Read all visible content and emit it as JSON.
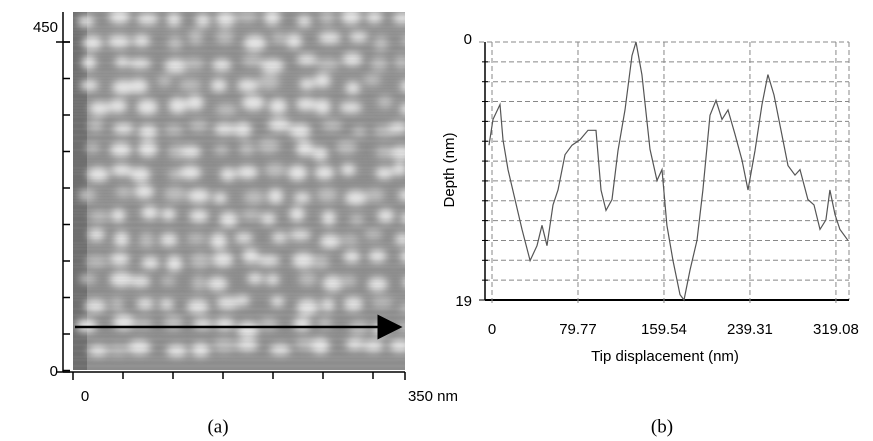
{
  "chart_data": [
    {
      "type": "image",
      "caption": "(a)",
      "xlim": [
        0,
        350
      ],
      "xticks": [
        0,
        {
          "value": 350,
          "label": "350 nm"
        }
      ],
      "ylim": [
        0,
        450
      ],
      "yticks": [
        0,
        450
      ]
    },
    {
      "type": "line",
      "caption": "(b)",
      "color": "#555555",
      "xlabel": "Tip displacement (nm)",
      "ylabel": "Depth  (nm)",
      "xlim": [
        -6.5,
        331.2
      ],
      "xticks": [
        0,
        79.77,
        159.54,
        239.31,
        319.08
      ],
      "ylim": [
        0,
        19
      ],
      "yticks": [
        0,
        19
      ],
      "y_inverted": true,
      "grid": true,
      "x": [
        -2.8,
        0.9,
        7.4,
        10.2,
        14.8,
        21.3,
        27.8,
        35.3,
        41.7,
        46.4,
        51.0,
        56.6,
        61.2,
        67.7,
        74.2,
        81.6,
        89.1,
        96.5,
        101.1,
        105.8,
        111.3,
        116.9,
        123.4,
        129.9,
        133.6,
        139.1,
        146.6,
        153.1,
        157.7,
        162.3,
        167.9,
        174.4,
        178.1,
        183.7,
        190.2,
        195.7,
        202.2,
        207.8,
        213.4,
        218.9,
        225.4,
        231.9,
        237.5,
        244.0,
        250.5,
        256.0,
        261.6,
        268.1,
        274.6,
        281.1,
        285.7,
        293.1,
        298.7,
        304.3,
        309.8,
        313.5,
        318.2,
        322.8,
        330.2
      ],
      "values": [
        7.6,
        5.7,
        4.6,
        7.2,
        9.4,
        11.6,
        13.8,
        16.1,
        15.0,
        13.5,
        15.0,
        12.0,
        10.9,
        8.3,
        7.6,
        7.2,
        6.5,
        6.5,
        10.9,
        12.4,
        11.6,
        8.0,
        5.0,
        1.0,
        0.0,
        2.4,
        7.9,
        10.2,
        9.4,
        13.5,
        16.1,
        18.6,
        19.0,
        16.8,
        14.6,
        10.9,
        5.4,
        4.3,
        5.7,
        5.0,
        6.8,
        8.7,
        10.9,
        8.0,
        4.6,
        2.4,
        3.9,
        6.5,
        9.1,
        9.8,
        9.4,
        11.6,
        12.0,
        13.8,
        13.1,
        10.9,
        12.7,
        13.8,
        14.6
      ]
    }
  ]
}
